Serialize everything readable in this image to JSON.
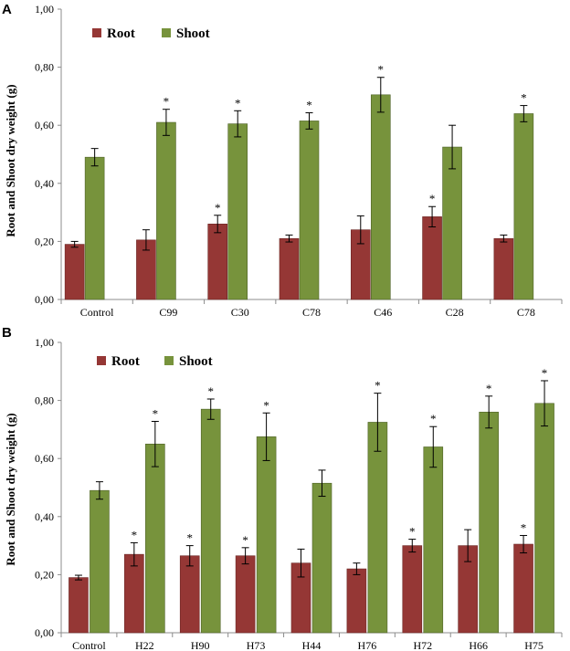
{
  "colors": {
    "root": "#953735",
    "root_stroke": "#6b2624",
    "shoot": "#77933c",
    "shoot_stroke": "#4f6228",
    "axis": "#8c8c8c"
  },
  "chart_data": [
    {
      "panel": "A",
      "type": "bar",
      "ylabel": "Root and Shoot dry weight (g)",
      "ylim": [
        0,
        1.0
      ],
      "yticks": [
        "0,00",
        "0,20",
        "0,40",
        "0,60",
        "0,80",
        "1,00"
      ],
      "legend": [
        "Root",
        "Shoot"
      ],
      "categories": [
        "Control",
        "C99",
        "C30",
        "C78",
        "C46",
        "C28",
        "C78"
      ],
      "series": [
        {
          "name": "Root",
          "values": [
            0.19,
            0.205,
            0.26,
            0.21,
            0.24,
            0.285,
            0.21
          ],
          "errors": [
            0.01,
            0.035,
            0.03,
            0.012,
            0.048,
            0.035,
            0.012
          ],
          "significant": [
            false,
            false,
            true,
            false,
            false,
            true,
            false
          ]
        },
        {
          "name": "Shoot",
          "values": [
            0.49,
            0.61,
            0.605,
            0.615,
            0.705,
            0.525,
            0.64
          ],
          "errors": [
            0.03,
            0.045,
            0.045,
            0.028,
            0.06,
            0.075,
            0.028
          ],
          "significant": [
            false,
            true,
            true,
            true,
            true,
            false,
            true
          ]
        }
      ]
    },
    {
      "panel": "B",
      "type": "bar",
      "ylabel": "Root and Shoot dry weight (g)",
      "ylim": [
        0,
        1.0
      ],
      "yticks": [
        "0,00",
        "0,20",
        "0,40",
        "0,60",
        "0,80",
        "1,00"
      ],
      "legend": [
        "Root",
        "Shoot"
      ],
      "categories": [
        "Control",
        "H22",
        "H90",
        "H73",
        "H44",
        "H76",
        "H72",
        "H66",
        "H75"
      ],
      "series": [
        {
          "name": "Root",
          "values": [
            0.19,
            0.27,
            0.265,
            0.265,
            0.24,
            0.22,
            0.3,
            0.3,
            0.305
          ],
          "errors": [
            0.008,
            0.04,
            0.035,
            0.028,
            0.048,
            0.02,
            0.022,
            0.055,
            0.03
          ],
          "significant": [
            false,
            true,
            true,
            true,
            false,
            false,
            true,
            false,
            true
          ]
        },
        {
          "name": "Shoot",
          "values": [
            0.49,
            0.65,
            0.77,
            0.675,
            0.515,
            0.725,
            0.64,
            0.76,
            0.79
          ],
          "errors": [
            0.03,
            0.078,
            0.035,
            0.082,
            0.045,
            0.1,
            0.07,
            0.055,
            0.078
          ],
          "significant": [
            false,
            true,
            true,
            true,
            false,
            true,
            true,
            true,
            true
          ]
        }
      ]
    }
  ]
}
